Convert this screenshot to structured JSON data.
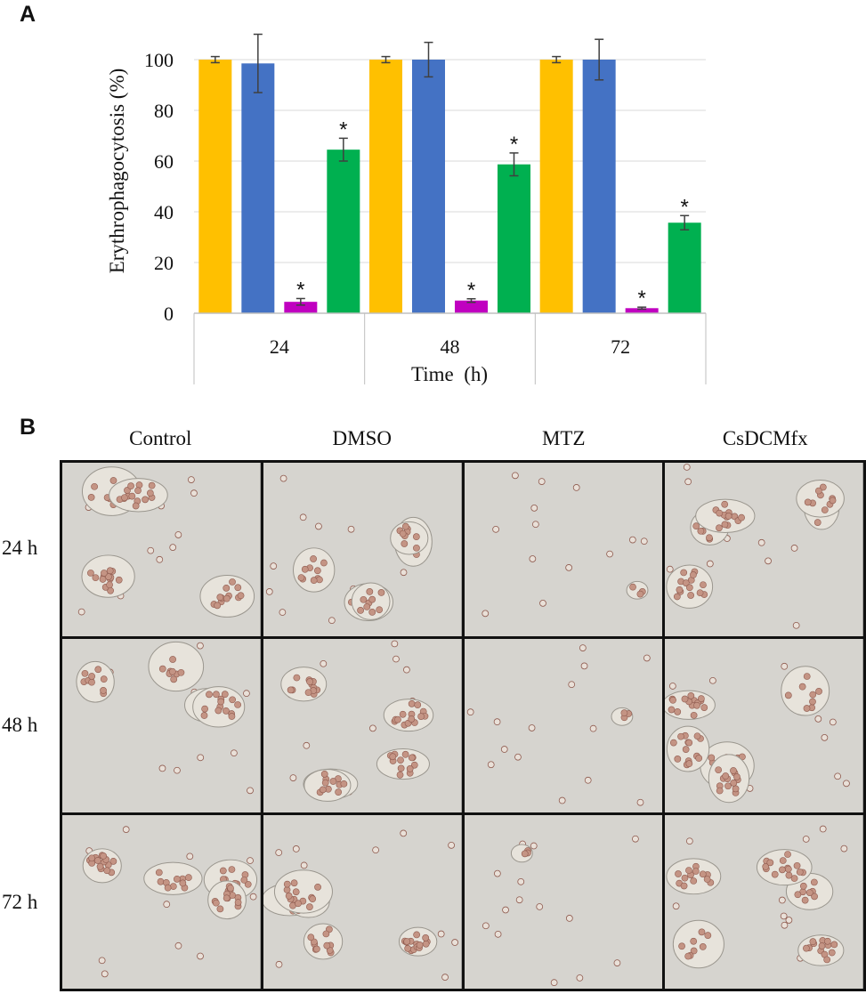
{
  "panel_a_label": "A",
  "panel_b_label": "B",
  "chart_data": {
    "type": "bar",
    "categories": [
      "24",
      "48",
      "72"
    ],
    "xlabel": "Time  (h)",
    "ylabel": "Erythrophagocytosis (%)",
    "ylim": [
      0,
      100
    ],
    "yticks": [
      0,
      20,
      40,
      60,
      80,
      100
    ],
    "grid": true,
    "series": [
      {
        "color": "#FFC000",
        "values": [
          100,
          100,
          100
        ],
        "errors": [
          1.2,
          1.2,
          1.2
        ],
        "significant": [
          false,
          false,
          false
        ]
      },
      {
        "color": "#4472C4",
        "values": [
          98.5,
          100,
          100
        ],
        "errors": [
          11.5,
          6.8,
          8
        ],
        "significant": [
          false,
          false,
          false
        ]
      },
      {
        "color": "#C000C0",
        "values": [
          4.5,
          5,
          2
        ],
        "errors": [
          1.3,
          0.7,
          0.4
        ],
        "significant": [
          true,
          true,
          true
        ]
      },
      {
        "color": "#00B050",
        "values": [
          64.5,
          58.7,
          35.7
        ],
        "errors": [
          4.5,
          4.5,
          2.8
        ],
        "significant": [
          true,
          true,
          true
        ]
      }
    ],
    "significance_mark": "*"
  },
  "micrographs": {
    "columns": [
      "Control",
      "DMSO",
      "MTZ",
      "CsDCMfx"
    ],
    "rows": [
      "24 h",
      "48 h",
      "72 h"
    ]
  },
  "colors": {
    "background_tone": "#d6d4cf",
    "trophozoite_fill": "#e7e3db",
    "erythrocyte_fill": "#c49484",
    "erythrocyte_edge": "#8e5a4e"
  }
}
